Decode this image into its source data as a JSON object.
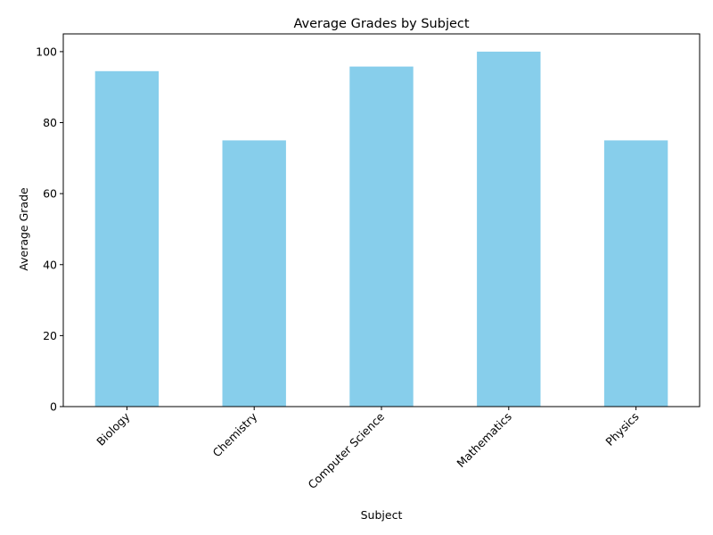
{
  "chart_data": {
    "type": "bar",
    "title": "Average Grades by Subject",
    "xlabel": "Subject",
    "ylabel": "Average Grade",
    "categories": [
      "Biology",
      "Chemistry",
      "Computer Science",
      "Mathematics",
      "Physics"
    ],
    "values": [
      94.5,
      75,
      95.8,
      100,
      75
    ],
    "ylim": [
      0,
      105
    ],
    "yticks": [
      0,
      20,
      40,
      60,
      80,
      100
    ],
    "bar_color": "#87CEEB",
    "grid": false,
    "legend": "none",
    "xtick_rotation": 45
  }
}
